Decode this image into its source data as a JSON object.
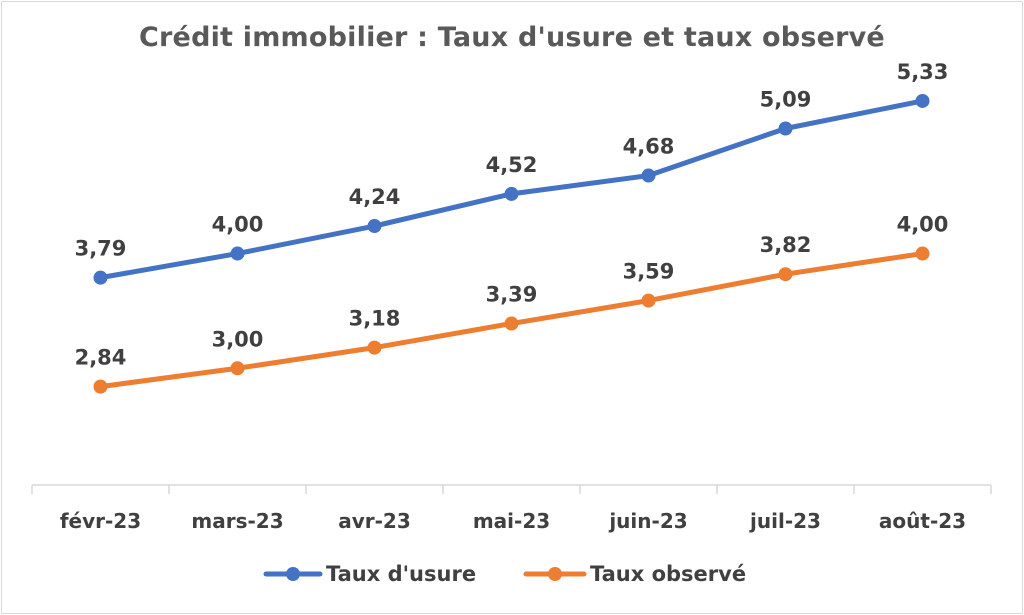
{
  "chart_data": {
    "type": "line",
    "title": "Crédit immobilier : Taux d'usure et taux observé",
    "xlabel": "",
    "ylabel": "",
    "categories": [
      "févr-23",
      "mars-23",
      "avr-23",
      "mai-23",
      "juin-23",
      "juil-23",
      "août-23"
    ],
    "ylim": [
      2.0,
      5.6
    ],
    "grid": false,
    "legend": "bottom",
    "series": [
      {
        "name": "Taux d'usure",
        "color": "#4472C4",
        "values": [
          3.79,
          4.0,
          4.24,
          4.52,
          4.68,
          5.09,
          5.33
        ],
        "labels": [
          "3,79",
          "4,00",
          "4,24",
          "4,52",
          "4,68",
          "5,09",
          "5,33"
        ]
      },
      {
        "name": "Taux observé",
        "color": "#ED7D31",
        "values": [
          2.84,
          3.0,
          3.18,
          3.39,
          3.59,
          3.82,
          4.0
        ],
        "labels": [
          "2,84",
          "3,00",
          "3,18",
          "3,39",
          "3,59",
          "3,82",
          "4,00"
        ]
      }
    ]
  }
}
